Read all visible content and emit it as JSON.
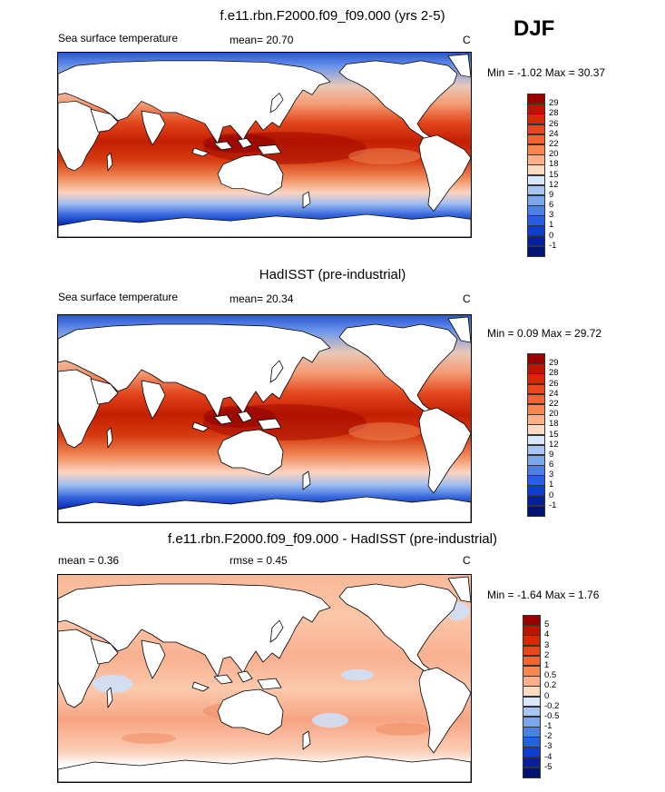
{
  "season": "DJF",
  "panels": [
    {
      "title": "f.e11.rbn.F2000.f09_f09.000 (yrs 2-5)",
      "left_label": "Sea surface temperature",
      "stat1": "mean=  20.70",
      "stat2": "",
      "units": "C",
      "minmax": "Min =  -1.02 Max =  30.37",
      "kind": "sst",
      "cbar_labels": [
        "29",
        "28",
        "26",
        "24",
        "22",
        "20",
        "18",
        "15",
        "12",
        "9",
        "6",
        "3",
        "1",
        "0",
        "-1"
      ],
      "cbar_colors": [
        "#9a0000",
        "#bb1400",
        "#d42a06",
        "#e8471c",
        "#f26533",
        "#f7864f",
        "#fbb08a",
        "#fdd9c2",
        "#d8e7fa",
        "#a8c6f2",
        "#7ba5ec",
        "#4d80e4",
        "#275fe0",
        "#0d3fcf",
        "#04209f",
        "#011275"
      ]
    },
    {
      "title": "HadISST (pre-industrial)",
      "left_label": "Sea surface temperature",
      "stat1": "mean=  20.34",
      "stat2": "",
      "units": "C",
      "minmax": "Min =   0.09 Max =  29.72",
      "kind": "sst",
      "cbar_labels": [
        "29",
        "28",
        "26",
        "24",
        "22",
        "20",
        "18",
        "15",
        "12",
        "9",
        "6",
        "3",
        "1",
        "0",
        "-1"
      ],
      "cbar_colors": [
        "#9a0000",
        "#bb1400",
        "#d42a06",
        "#e8471c",
        "#f26533",
        "#f7864f",
        "#fbb08a",
        "#fdd9c2",
        "#d8e7fa",
        "#a8c6f2",
        "#7ba5ec",
        "#4d80e4",
        "#275fe0",
        "#0d3fcf",
        "#04209f",
        "#011275"
      ]
    },
    {
      "title": "f.e11.rbn.F2000.f09_f09.000 - HadISST (pre-industrial)",
      "left_label": "mean =   0.36",
      "stat1": "rmse =   0.45",
      "stat2": "",
      "units": "C",
      "minmax": "Min =  -1.64 Max =   1.76",
      "kind": "diff",
      "cbar_labels": [
        "5",
        "4",
        "3",
        "2",
        "1",
        "0.5",
        "0.2",
        "0",
        "-0.2",
        "-0.5",
        "-1",
        "-2",
        "-3",
        "-4",
        "-5"
      ],
      "cbar_colors": [
        "#9a0000",
        "#bb1400",
        "#d42a06",
        "#e8471c",
        "#f26533",
        "#f7864f",
        "#fbb08a",
        "#fdd9c2",
        "#d8e7fa",
        "#a8c6f2",
        "#7ba5ec",
        "#4d80e4",
        "#275fe0",
        "#0d3fcf",
        "#04209f",
        "#011275"
      ]
    }
  ]
}
